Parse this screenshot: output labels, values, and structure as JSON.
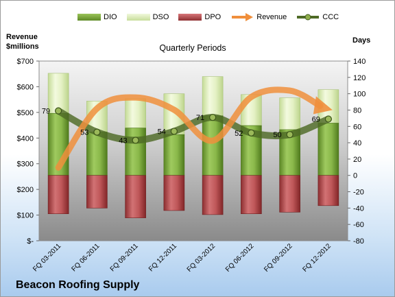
{
  "legend": {
    "dio": "DIO",
    "dso": "DSO",
    "dpo": "DPO",
    "revenue": "Revenue",
    "ccc": "CCC"
  },
  "left_axis_title": [
    "Revenue",
    "$millions"
  ],
  "right_axis_title": "Days",
  "plot_title": "Quarterly Periods",
  "company_title": "Beacon Roofing Supply",
  "colors": {
    "dio": "#77a336",
    "dso": "#d6eab0",
    "dpo": "#b54b4d",
    "revenue": "#f08f3c",
    "ccc": "#4e6a26"
  },
  "chart_data": {
    "type": "bar",
    "categories": [
      "FQ 03-2011",
      "FQ 06-2011",
      "FQ 09-2011",
      "FQ 12-2011",
      "FQ 03-2012",
      "FQ 06-2012",
      "FQ 09-2012",
      "FQ 12-2012"
    ],
    "left_axis": {
      "min": 0,
      "max": 700,
      "step": 100,
      "tick_labels": [
        "$-",
        "$100",
        "$200",
        "$300",
        "$400",
        "$500",
        "$600",
        "$700"
      ]
    },
    "right_axis": {
      "min": -80,
      "max": 140,
      "step": 20,
      "tick_labels": [
        "-80",
        "-60",
        "-40",
        "-20",
        "0",
        "20",
        "40",
        "60",
        "80",
        "100",
        "120",
        "140"
      ]
    },
    "series": [
      {
        "name": "DIO",
        "axis": "right",
        "kind": "bar-stacked",
        "values": [
          76,
          53,
          58,
          50,
          73,
          61,
          56,
          64
        ]
      },
      {
        "name": "DSO",
        "axis": "right",
        "kind": "bar-stacked",
        "values": [
          49,
          38,
          36,
          50,
          48,
          38,
          39,
          41
        ]
      },
      {
        "name": "DPO",
        "axis": "right",
        "kind": "bar-negative",
        "values": [
          -47,
          -40,
          -52,
          -43,
          -48,
          -47,
          -45,
          -37
        ]
      },
      {
        "name": "Revenue",
        "axis": "left",
        "kind": "line-arrow",
        "values": [
          285,
          515,
          558,
          510,
          390,
          560,
          585,
          520
        ]
      },
      {
        "name": "CCC",
        "axis": "right",
        "kind": "line",
        "values": [
          79,
          53,
          43,
          54,
          71,
          52,
          50,
          69
        ]
      }
    ],
    "ccc_labels": [
      "79",
      "53",
      "43",
      "54",
      "71",
      "52",
      "50",
      "69"
    ],
    "grid": false,
    "legend_position": "top"
  }
}
